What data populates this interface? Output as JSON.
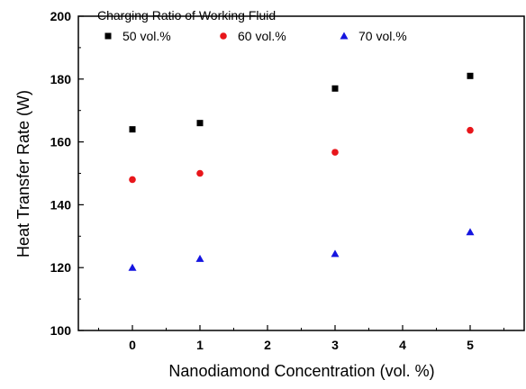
{
  "chart_data": {
    "type": "scatter",
    "xlabel": "Nanodiamond Concentration (vol. %)",
    "ylabel": "Heat Transfer Rate (W)",
    "xlim": [
      -0.8,
      5.8
    ],
    "ylim": [
      100,
      200
    ],
    "xticks": [
      0,
      1,
      2,
      3,
      4,
      5
    ],
    "yticks": [
      100,
      120,
      140,
      160,
      180,
      200
    ],
    "grid": false,
    "legend": {
      "title": "Charging Ratio of Working Fluid",
      "placement": "top-left"
    },
    "series": [
      {
        "name": "50 vol.%",
        "marker": "square",
        "color": "#000000",
        "x": [
          0,
          1,
          3,
          5
        ],
        "y": [
          164,
          166,
          177,
          181
        ]
      },
      {
        "name": "60 vol.%",
        "marker": "circle",
        "color": "#e8161b",
        "x": [
          0,
          1,
          3,
          5
        ],
        "y": [
          148,
          150,
          156.7,
          163.7
        ]
      },
      {
        "name": "70 vol.%",
        "marker": "triangle",
        "color": "#1515e0",
        "x": [
          0,
          1,
          3,
          5
        ],
        "y": [
          120,
          122.8,
          124.4,
          131.3
        ]
      }
    ]
  }
}
